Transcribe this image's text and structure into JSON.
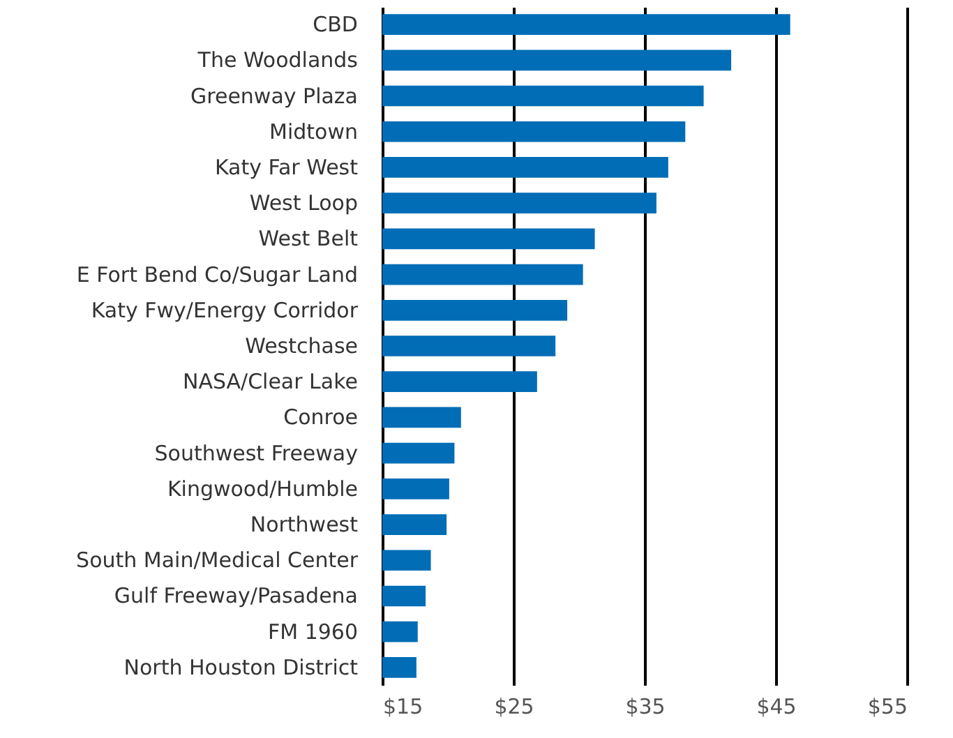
{
  "chart_data": {
    "type": "bar",
    "orientation": "horizontal",
    "categories": [
      "CBD",
      "The Woodlands",
      "Greenway Plaza",
      "Midtown",
      "Katy Far West",
      "West Loop",
      "West Belt",
      "E Fort Bend Co/Sugar Land",
      "Katy Fwy/Energy Corridor",
      "Westchase",
      "NASA/Clear Lake",
      "Conroe",
      "Southwest Freeway",
      "Kingwood/Humble",
      "Northwest",
      "South Main/Medical Center",
      "Gulf Freeway/Pasadena",
      "FM 1960",
      "North Houston District"
    ],
    "values": [
      46.1,
      41.6,
      39.5,
      38.1,
      36.8,
      35.9,
      31.2,
      30.3,
      29.1,
      28.2,
      26.8,
      21.0,
      20.5,
      20.1,
      19.9,
      18.7,
      18.3,
      17.7,
      17.6
    ],
    "color": "#006db6",
    "xlim": [
      15,
      55
    ],
    "xticks": [
      {
        "value": 15,
        "label": "$15"
      },
      {
        "value": 25,
        "label": "$25"
      },
      {
        "value": 35,
        "label": "$35"
      },
      {
        "value": 45,
        "label": "$45"
      },
      {
        "value": 55,
        "label": "$55"
      }
    ],
    "grid": "x"
  }
}
